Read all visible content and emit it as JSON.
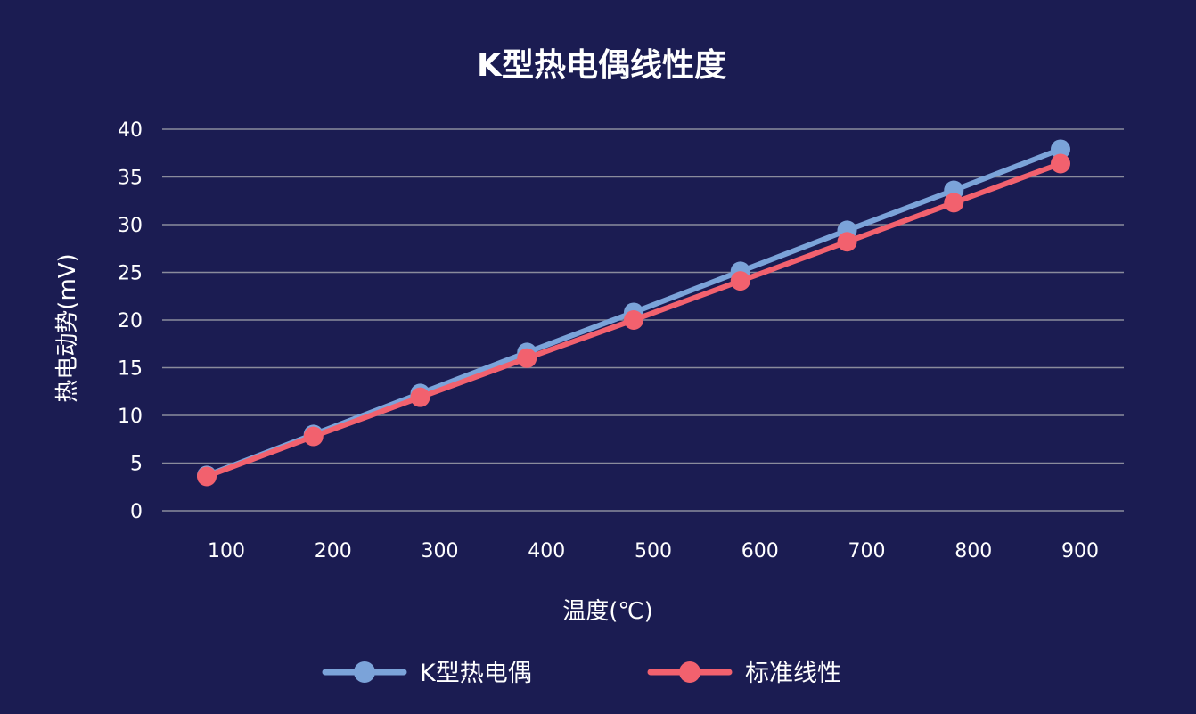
{
  "chart_data": {
    "type": "line",
    "title": "K型热电偶线性度",
    "xlabel": "温度(℃)",
    "ylabel": "热电动势(mV)",
    "categories": [
      "100",
      "200",
      "300",
      "400",
      "500",
      "600",
      "700",
      "800",
      "900"
    ],
    "ylim": [
      0,
      40
    ],
    "yticks": [
      "0",
      "5",
      "10",
      "15",
      "20",
      "25",
      "30",
      "35",
      "40"
    ],
    "grid": true,
    "legend_position": "bottom",
    "series": [
      {
        "name": "K型热电偶",
        "color": "#7ba3d9",
        "values": [
          3.7,
          8.0,
          12.3,
          16.6,
          20.8,
          25.1,
          29.4,
          33.6,
          37.9
        ]
      },
      {
        "name": "标准线性",
        "color": "#f2616e",
        "values": [
          3.6,
          7.8,
          11.9,
          16.0,
          20.0,
          24.1,
          28.2,
          32.3,
          36.4
        ]
      }
    ]
  }
}
